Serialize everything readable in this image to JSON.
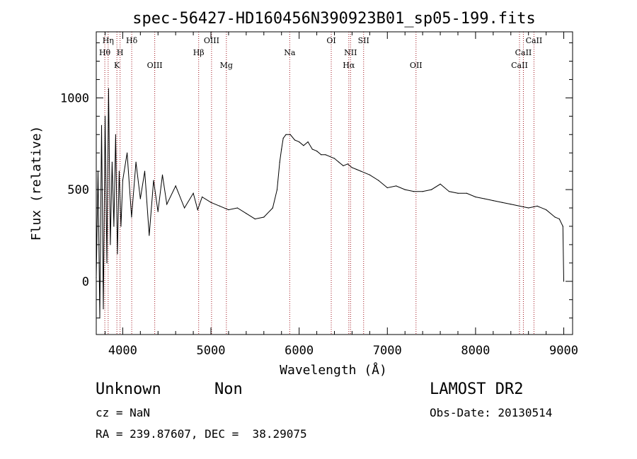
{
  "chart_data": {
    "type": "line",
    "title": "spec-56427-HD160456N390923B01_sp05-199.fits",
    "xlabel": "Wavelength (Å)",
    "ylabel": "Flux (relative)",
    "xlim": [
      3700,
      9100
    ],
    "ylim": [
      -290,
      1360
    ],
    "x_ticks": [
      4000,
      5000,
      6000,
      7000,
      8000,
      9000
    ],
    "y_ticks": [
      0,
      500,
      1000
    ],
    "series": [
      {
        "x": [
          3700,
          3720,
          3740,
          3760,
          3780,
          3800,
          3820,
          3840,
          3860,
          3880,
          3900,
          3920,
          3940,
          3960,
          3980,
          4000,
          4050,
          4100,
          4150,
          4200,
          4250,
          4300,
          4350,
          4400,
          4450,
          4500,
          4600,
          4700,
          4800,
          4850,
          4900,
          5000,
          5100,
          5200,
          5300,
          5400,
          5500,
          5600,
          5700,
          5750,
          5780,
          5800,
          5820,
          5850,
          5900,
          5950,
          6000,
          6050,
          6100,
          6150,
          6200,
          6250,
          6300,
          6350,
          6400,
          6450,
          6500,
          6550,
          6600,
          6650,
          6700,
          6800,
          6900,
          7000,
          7100,
          7200,
          7300,
          7400,
          7500,
          7600,
          7700,
          7800,
          7900,
          8000,
          8100,
          8200,
          8300,
          8400,
          8500,
          8600,
          8700,
          8800,
          8900,
          8950,
          8990,
          9000
        ],
        "y": [
          20,
          600,
          -200,
          850,
          -150,
          900,
          100,
          1050,
          200,
          650,
          300,
          800,
          150,
          600,
          300,
          550,
          700,
          350,
          650,
          450,
          600,
          250,
          550,
          380,
          580,
          420,
          520,
          400,
          480,
          390,
          460,
          430,
          410,
          390,
          400,
          370,
          340,
          350,
          400,
          500,
          650,
          720,
          780,
          800,
          800,
          770,
          760,
          740,
          760,
          720,
          710,
          690,
          690,
          680,
          670,
          650,
          630,
          640,
          620,
          610,
          600,
          580,
          550,
          510,
          520,
          500,
          490,
          490,
          500,
          530,
          490,
          480,
          480,
          460,
          450,
          440,
          430,
          420,
          410,
          400,
          410,
          390,
          350,
          340,
          300,
          0
        ]
      }
    ],
    "lines": [
      {
        "label": "Hη",
        "wave": 3835,
        "row": 0
      },
      {
        "label": "Hθ",
        "wave": 3797,
        "row": 1
      },
      {
        "label": "H",
        "wave": 3970,
        "row": 1
      },
      {
        "label": "K",
        "wave": 3934,
        "row": 2
      },
      {
        "label": "Hδ",
        "wave": 4102,
        "row": 0
      },
      {
        "label": "OIII",
        "wave": 4363,
        "row": 2
      },
      {
        "label": "OIII",
        "wave": 5007,
        "row": 0
      },
      {
        "label": "Hβ",
        "wave": 4861,
        "row": 1
      },
      {
        "label": "Mg",
        "wave": 5175,
        "row": 2
      },
      {
        "label": "Na",
        "wave": 5893,
        "row": 1
      },
      {
        "label": "OI",
        "wave": 6364,
        "row": 0
      },
      {
        "label": "NII",
        "wave": 6583,
        "row": 1
      },
      {
        "label": "Hα",
        "wave": 6563,
        "row": 2
      },
      {
        "label": "OII",
        "wave": 7325,
        "row": 2
      },
      {
        "label": "SII",
        "wave": 6731,
        "row": 0
      },
      {
        "label": "CaII",
        "wave": 8662,
        "row": 0
      },
      {
        "label": "CaII",
        "wave": 8542,
        "row": 1
      },
      {
        "label": "CaII",
        "wave": 8498,
        "row": 2
      }
    ]
  },
  "info": {
    "object_class": "Unknown",
    "subclass": "Non",
    "survey": "LAMOST DR2",
    "cz": "cz = NaN",
    "obs_date": "Obs-Date: 20130514",
    "coords": "RA = 239.87607, DEC =  38.29075"
  }
}
